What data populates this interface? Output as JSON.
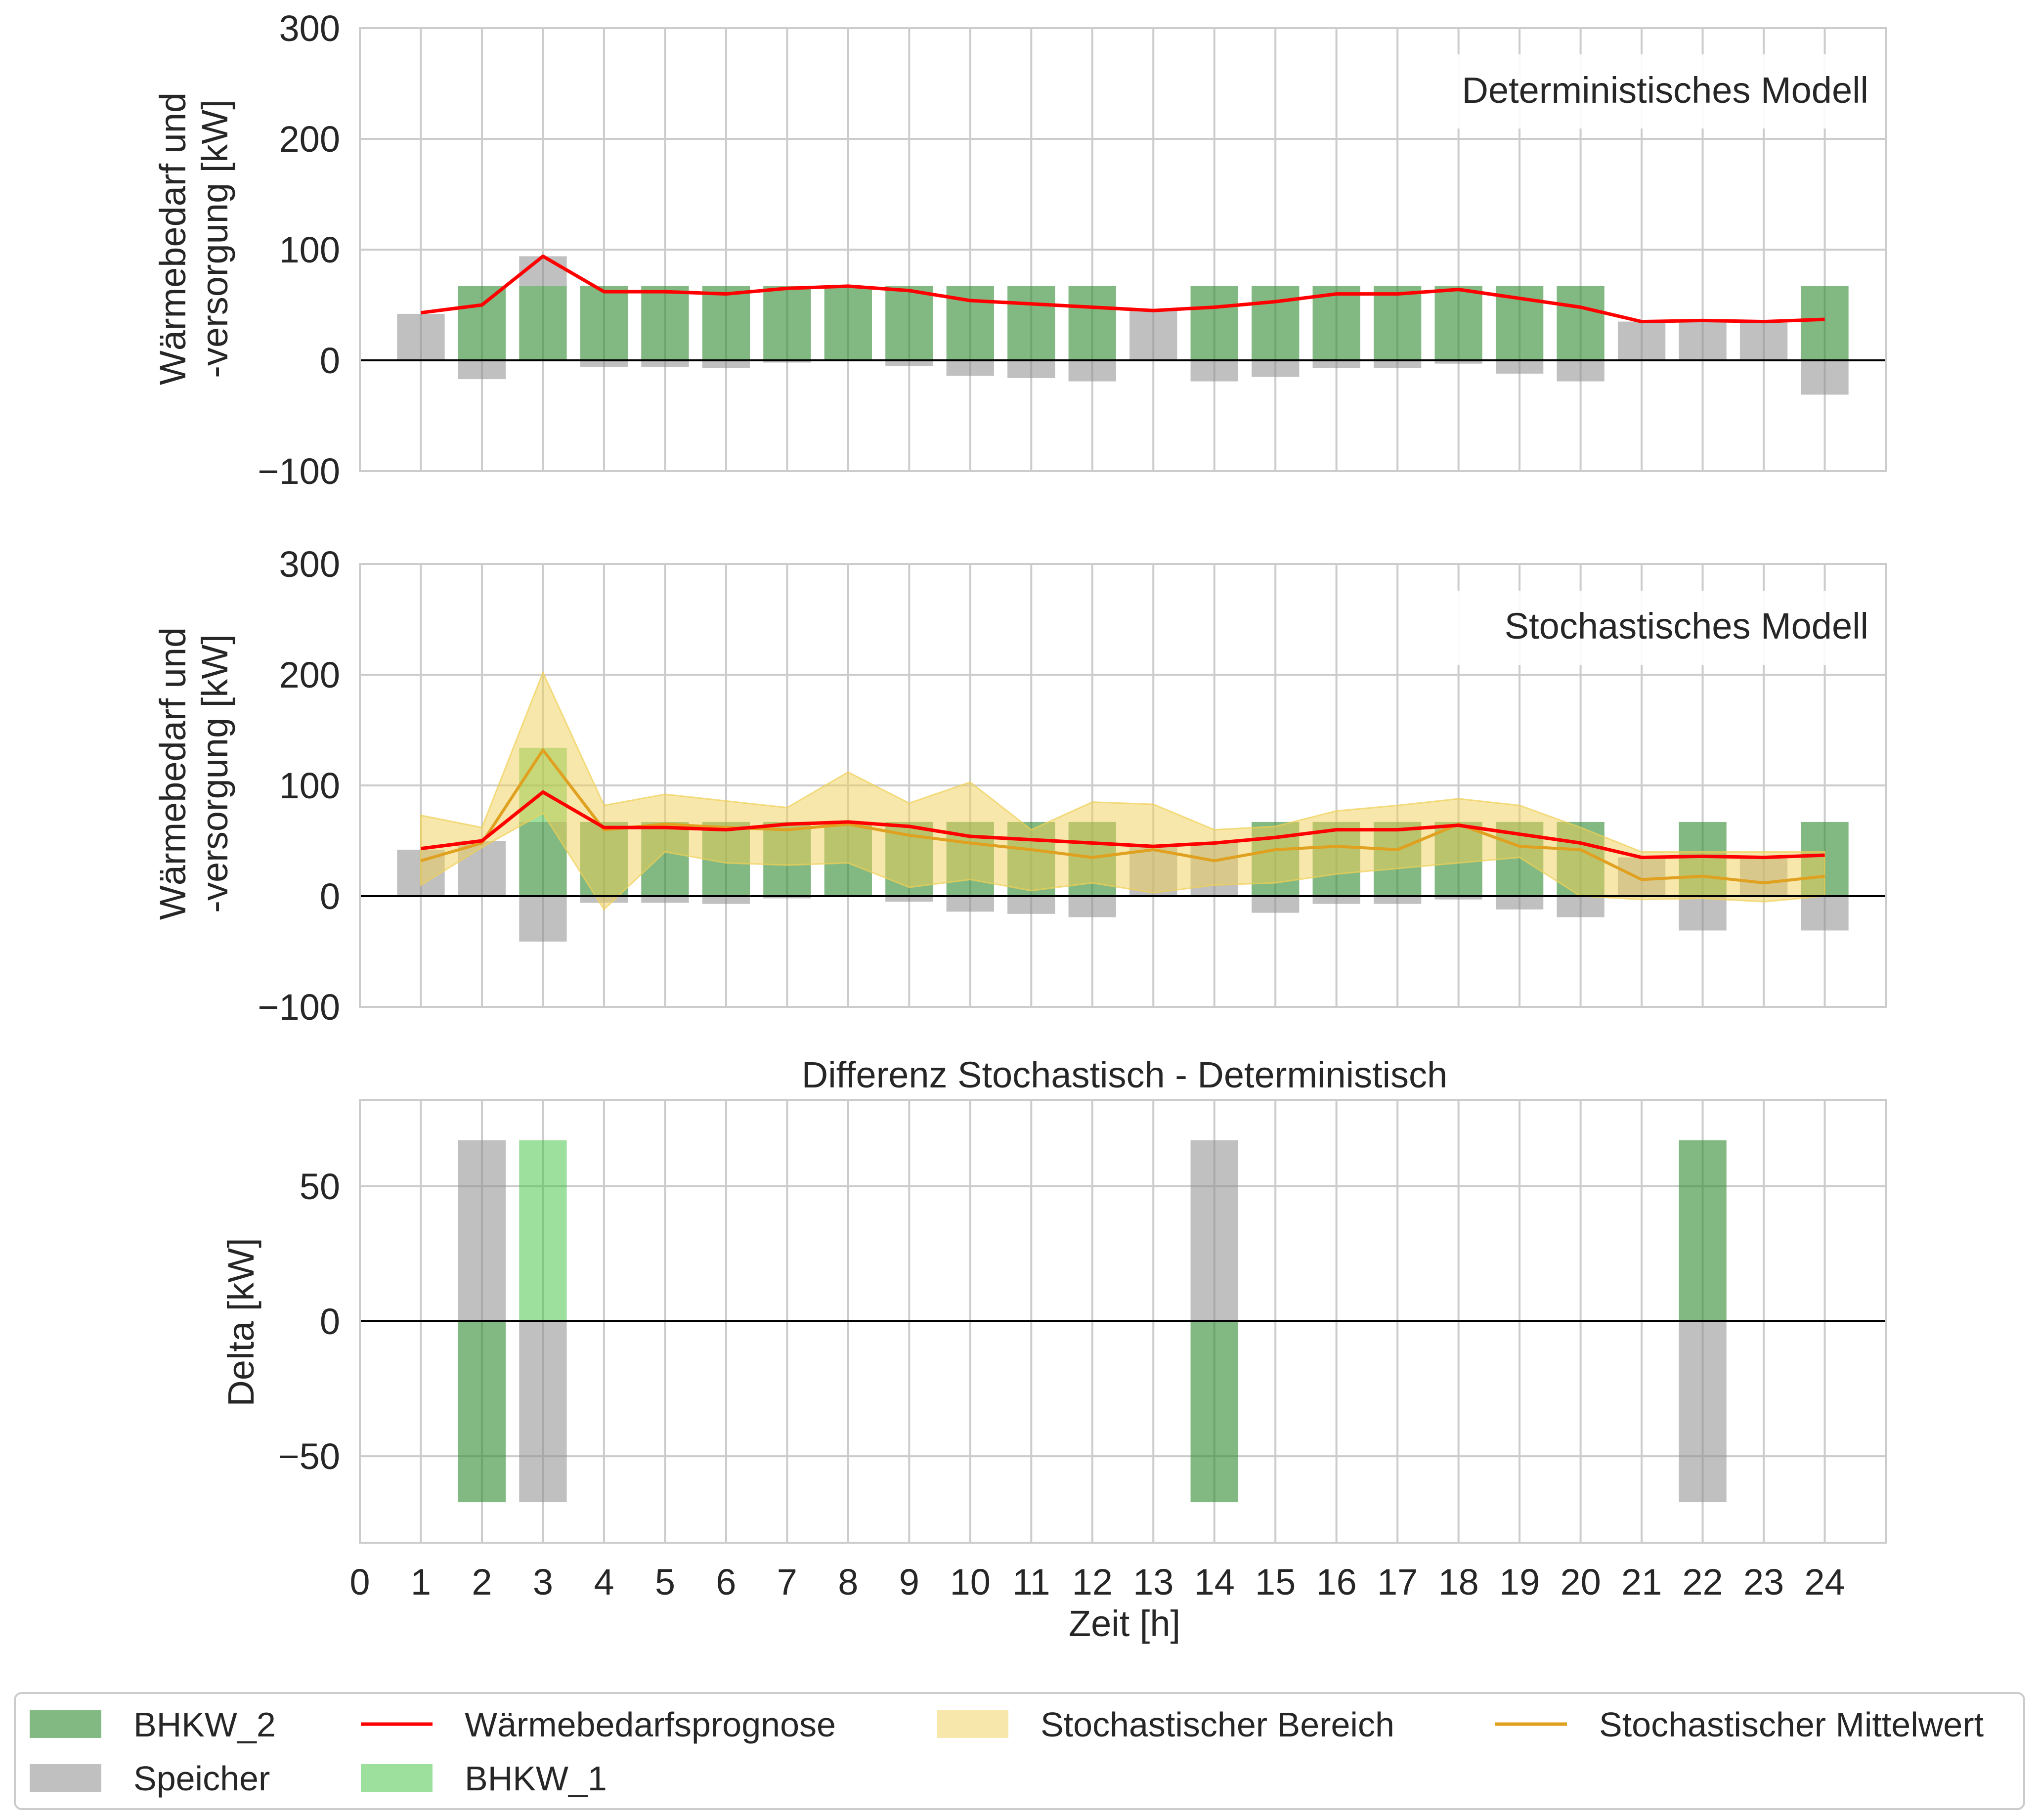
{
  "colors": {
    "bhkw2": "#2e8b2e",
    "bhkw1": "#3cc13c",
    "speicher": "#8c8c8c",
    "prognose": "#ff0000",
    "bereich": "#f0d055",
    "mittelwert": "#e0a020"
  },
  "chart_data": [
    {
      "type": "bar",
      "name": "panel-deterministic",
      "annotation": "Deterministisches Modell",
      "ylabel_line1": "Wärmebedarf und",
      "ylabel_line2": "-versorgung [kW]",
      "ylim": [
        -100,
        300
      ],
      "yticks": [
        -100,
        0,
        100,
        200,
        300
      ],
      "ytick_labels": [
        "−100",
        "0",
        "100",
        "200",
        "300"
      ],
      "xlim": [
        0,
        25
      ],
      "x": [
        1,
        2,
        3,
        4,
        5,
        6,
        7,
        8,
        9,
        10,
        11,
        12,
        13,
        14,
        15,
        16,
        17,
        18,
        19,
        20,
        21,
        22,
        23,
        24
      ],
      "grid": true,
      "series": [
        {
          "name": "BHKW_2",
          "kind": "bar",
          "values": [
            0,
            67,
            67,
            67,
            67,
            67,
            67,
            67,
            67,
            67,
            67,
            67,
            0,
            67,
            67,
            67,
            67,
            67,
            67,
            67,
            0,
            0,
            0,
            67
          ]
        },
        {
          "name": "BHKW_1",
          "kind": "bar",
          "values": [
            0,
            0,
            0,
            0,
            0,
            0,
            0,
            0,
            0,
            0,
            0,
            0,
            0,
            0,
            0,
            0,
            0,
            0,
            0,
            0,
            0,
            0,
            0,
            0
          ]
        },
        {
          "name": "Speicher",
          "kind": "bar",
          "values": [
            42,
            -17,
            27,
            -6,
            -6,
            -7,
            -2,
            0,
            -5,
            -14,
            -16,
            -19,
            45,
            -19,
            -15,
            -7,
            -7,
            -3,
            -12,
            -19,
            35,
            35,
            34,
            -31
          ]
        },
        {
          "name": "Wärmebedarfsprognose",
          "kind": "line",
          "values": [
            43,
            50,
            94,
            62,
            62,
            60,
            65,
            67,
            63,
            54,
            51,
            48,
            45,
            48,
            53,
            60,
            60,
            64,
            56,
            48,
            35,
            36,
            35,
            37
          ]
        }
      ]
    },
    {
      "type": "bar",
      "name": "panel-stochastic",
      "annotation": "Stochastisches Modell",
      "ylabel_line1": "Wärmebedarf und",
      "ylabel_line2": "-versorgung [kW]",
      "ylim": [
        -100,
        300
      ],
      "yticks": [
        -100,
        0,
        100,
        200,
        300
      ],
      "ytick_labels": [
        "−100",
        "0",
        "100",
        "200",
        "300"
      ],
      "xlim": [
        0,
        25
      ],
      "x": [
        1,
        2,
        3,
        4,
        5,
        6,
        7,
        8,
        9,
        10,
        11,
        12,
        13,
        14,
        15,
        16,
        17,
        18,
        19,
        20,
        21,
        22,
        23,
        24
      ],
      "grid": true,
      "series": [
        {
          "name": "BHKW_2",
          "kind": "bar",
          "values": [
            0,
            0,
            67,
            67,
            67,
            67,
            67,
            67,
            67,
            67,
            67,
            67,
            0,
            0,
            67,
            67,
            67,
            67,
            67,
            67,
            0,
            67,
            0,
            67
          ]
        },
        {
          "name": "BHKW_1",
          "kind": "bar",
          "values": [
            0,
            0,
            67,
            0,
            0,
            0,
            0,
            0,
            0,
            0,
            0,
            0,
            0,
            0,
            0,
            0,
            0,
            0,
            0,
            0,
            0,
            0,
            0,
            0
          ]
        },
        {
          "name": "Speicher",
          "kind": "bar",
          "values": [
            42,
            50,
            -41,
            -6,
            -6,
            -7,
            -2,
            0,
            -5,
            -14,
            -16,
            -19,
            45,
            48,
            -15,
            -7,
            -7,
            -3,
            -12,
            -19,
            35,
            -31,
            34,
            -31
          ]
        },
        {
          "name": "Wärmebedarfsprognose",
          "kind": "line",
          "values": [
            43,
            50,
            94,
            62,
            62,
            60,
            65,
            67,
            63,
            54,
            51,
            48,
            45,
            48,
            53,
            60,
            60,
            64,
            56,
            48,
            35,
            36,
            35,
            37
          ]
        },
        {
          "name": "Stochastischer Mittelwert",
          "kind": "line",
          "values": [
            32,
            48,
            132,
            60,
            65,
            62,
            60,
            65,
            55,
            48,
            42,
            35,
            42,
            32,
            42,
            45,
            42,
            65,
            45,
            42,
            15,
            18,
            12,
            18
          ]
        },
        {
          "name": "Stochastischer Bereich",
          "kind": "area",
          "upper": [
            73,
            62,
            202,
            82,
            92,
            86,
            80,
            112,
            84,
            103,
            60,
            85,
            83,
            60,
            63,
            77,
            82,
            88,
            82,
            62,
            40,
            40,
            40,
            40
          ],
          "lower": [
            10,
            44,
            75,
            -12,
            40,
            30,
            28,
            30,
            8,
            15,
            5,
            12,
            3,
            10,
            12,
            20,
            25,
            30,
            35,
            0,
            -3,
            -2,
            -5,
            0
          ]
        }
      ]
    },
    {
      "type": "bar",
      "name": "panel-difference",
      "title": "Differenz Stochastisch - Deterministisch",
      "ylabel": "Delta [kW]",
      "xlabel": "Zeit [h]",
      "ylim": [
        -82,
        82
      ],
      "yticks": [
        -50,
        0,
        50
      ],
      "ytick_labels": [
        "−50",
        "0",
        "50"
      ],
      "xlim": [
        0,
        25
      ],
      "xticks": [
        0,
        1,
        2,
        3,
        4,
        5,
        6,
        7,
        8,
        9,
        10,
        11,
        12,
        13,
        14,
        15,
        16,
        17,
        18,
        19,
        20,
        21,
        22,
        23,
        24
      ],
      "xtick_labels": [
        "0",
        "1",
        "2",
        "3",
        "4",
        "5",
        "6",
        "7",
        "8",
        "9",
        "10",
        "11",
        "12",
        "13",
        "14",
        "15",
        "16",
        "17",
        "18",
        "19",
        "20",
        "21",
        "22",
        "23",
        "24"
      ],
      "x": [
        1,
        2,
        3,
        4,
        5,
        6,
        7,
        8,
        9,
        10,
        11,
        12,
        13,
        14,
        15,
        16,
        17,
        18,
        19,
        20,
        21,
        22,
        23,
        24
      ],
      "grid": true,
      "series": [
        {
          "name": "BHKW_2",
          "kind": "bar",
          "values": [
            0,
            -67,
            0,
            0,
            0,
            0,
            0,
            0,
            0,
            0,
            0,
            0,
            0,
            -67,
            0,
            0,
            0,
            0,
            0,
            0,
            0,
            67,
            0,
            0
          ]
        },
        {
          "name": "BHKW_1",
          "kind": "bar",
          "values": [
            0,
            0,
            67,
            0,
            0,
            0,
            0,
            0,
            0,
            0,
            0,
            0,
            0,
            0,
            0,
            0,
            0,
            0,
            0,
            0,
            0,
            0,
            0,
            0
          ]
        },
        {
          "name": "Speicher",
          "kind": "bar",
          "values": [
            0,
            67,
            -67,
            0,
            0,
            0,
            0,
            0,
            0,
            0,
            0,
            0,
            0,
            67,
            0,
            0,
            0,
            0,
            0,
            0,
            0,
            -67,
            0,
            0
          ]
        }
      ]
    }
  ],
  "legend": {
    "placement": "bottom",
    "items": [
      {
        "label": "BHKW_2",
        "kind": "patch",
        "color_key": "bhkw2"
      },
      {
        "label": "Wärmebedarfsprognose",
        "kind": "line",
        "color_key": "prognose"
      },
      {
        "label": "Stochastischer Bereich",
        "kind": "patch",
        "color_key": "bereich"
      },
      {
        "label": "Stochastischer Mittelwert",
        "kind": "line",
        "color_key": "mittelwert"
      },
      {
        "label": "Speicher",
        "kind": "patch",
        "color_key": "speicher"
      },
      {
        "label": "BHKW_1",
        "kind": "patch",
        "color_key": "bhkw1"
      }
    ]
  }
}
